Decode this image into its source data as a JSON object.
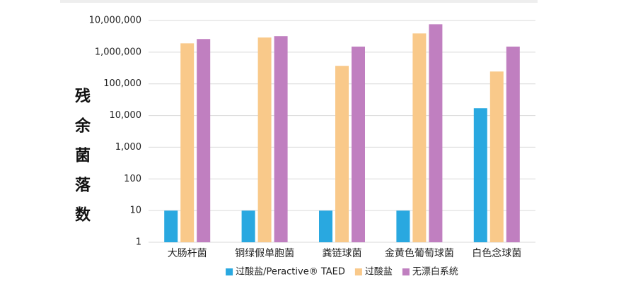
{
  "chart_data": {
    "type": "bar",
    "y_label": "残余菌落数",
    "categories": [
      "大肠杆菌",
      "铜绿假单胞菌",
      "粪链球菌",
      "金黄色葡萄球菌",
      "白色念球菌"
    ],
    "series": [
      {
        "name": "过酸盐/Peractive® TAED",
        "color": "#29a8e0",
        "values": [
          10,
          10,
          10,
          10,
          17000
        ]
      },
      {
        "name": "过酸盐",
        "color": "#f9c98a",
        "values": [
          1900000,
          2900000,
          370000,
          3900000,
          245000
        ]
      },
      {
        "name": "无漂白系统",
        "color": "#c07fc0",
        "values": [
          2600000,
          3200000,
          1500000,
          7600000,
          1500000
        ]
      }
    ],
    "log_scale": true,
    "ylim": [
      1,
      10000000
    ],
    "yticks": [
      1,
      10,
      100,
      {
        "value": 1000,
        "label": "1,000"
      },
      {
        "value": 10000,
        "label": "10,000"
      },
      {
        "value": 100000,
        "label": "100,000"
      },
      {
        "value": 1000000,
        "label": "1,000,000"
      },
      {
        "value": 10000000,
        "label": "10,000,000"
      }
    ],
    "grid": true,
    "legend": "bottom"
  }
}
